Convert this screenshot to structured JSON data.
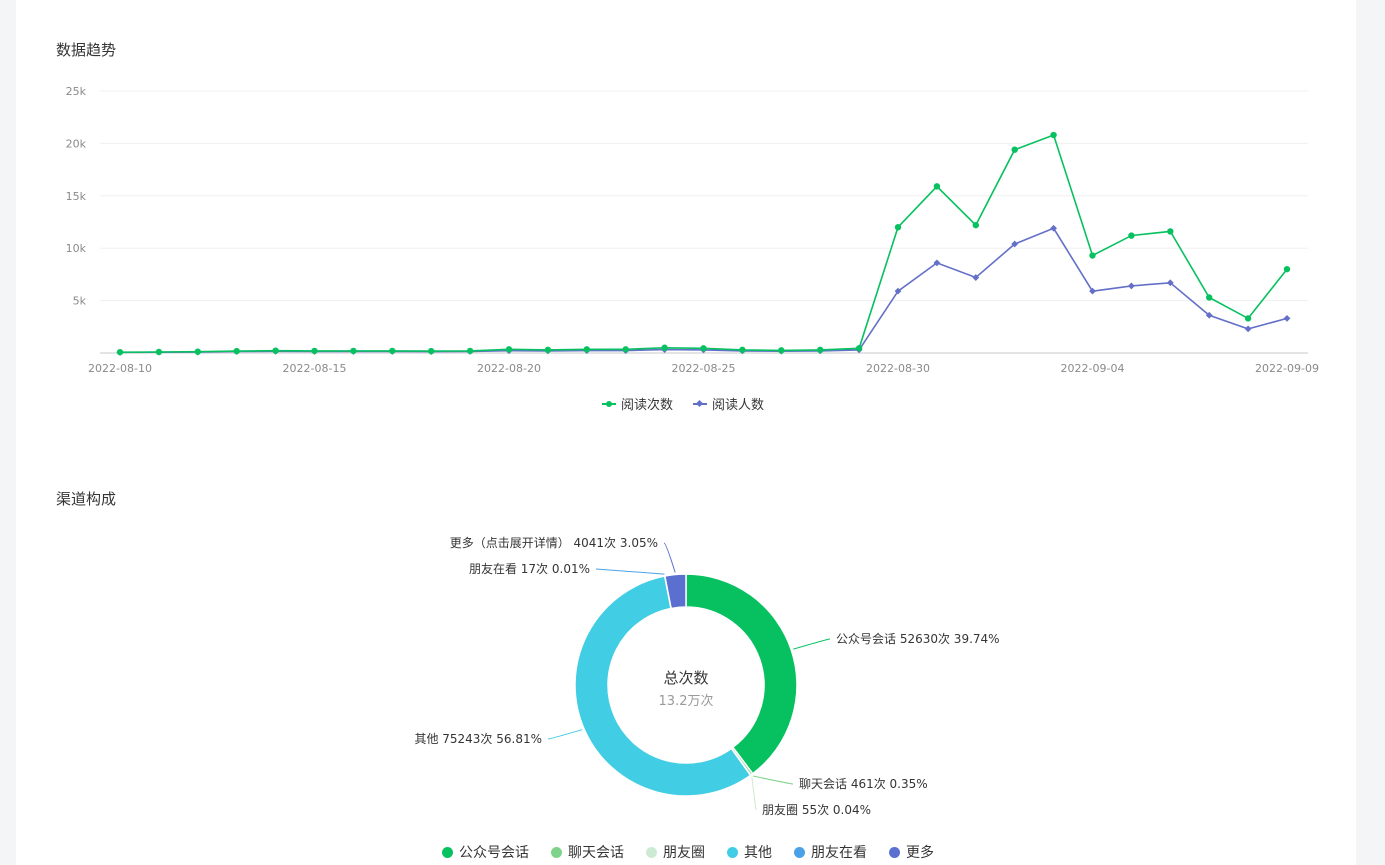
{
  "trend": {
    "title": "数据趋势"
  },
  "channel": {
    "title": "渠道构成",
    "center_label": "总次数",
    "center_value": "13.2万次"
  },
  "colors": {
    "read_count": "#07c160",
    "reader_count": "#6470c8",
    "gongzhonghao": "#07c160",
    "liaotian": "#7fd28a",
    "pengyouquan": "#cdebd2",
    "qita": "#41cde3",
    "pengyouzaikan": "#4aa1e8",
    "gengduo": "#5b6fd0"
  },
  "chart_data": [
    {
      "type": "line",
      "title": "",
      "xlabel": "",
      "ylabel": "",
      "ylim": [
        0,
        25000
      ],
      "yticks": [
        5000,
        10000,
        15000,
        20000,
        25000
      ],
      "ytick_labels": [
        "5k",
        "10k",
        "15k",
        "20k",
        "25k"
      ],
      "xtick_labels": [
        "2022-08-10",
        "2022-08-15",
        "2022-08-20",
        "2022-08-25",
        "2022-08-30",
        "2022-09-04",
        "2022-09-09"
      ],
      "grid": true,
      "legend_position": "bottom-center",
      "x": [
        "2022-08-10",
        "2022-08-11",
        "2022-08-12",
        "2022-08-13",
        "2022-08-14",
        "2022-08-15",
        "2022-08-16",
        "2022-08-17",
        "2022-08-18",
        "2022-08-19",
        "2022-08-20",
        "2022-08-21",
        "2022-08-22",
        "2022-08-23",
        "2022-08-24",
        "2022-08-25",
        "2022-08-26",
        "2022-08-27",
        "2022-08-28",
        "2022-08-29",
        "2022-08-30",
        "2022-08-31",
        "2022-09-01",
        "2022-09-02",
        "2022-09-03",
        "2022-09-04",
        "2022-09-05",
        "2022-09-06",
        "2022-09-07",
        "2022-09-08",
        "2022-09-09"
      ],
      "series": [
        {
          "name": "阅读次数",
          "marker": "circle",
          "values": [
            80,
            100,
            120,
            180,
            220,
            200,
            200,
            200,
            180,
            200,
            350,
            300,
            350,
            350,
            500,
            450,
            300,
            250,
            300,
            450,
            12000,
            15900,
            12200,
            19400,
            20800,
            9300,
            11200,
            11600,
            5300,
            3300,
            8000
          ]
        },
        {
          "name": "阅读人数",
          "marker": "diamond",
          "values": [
            60,
            80,
            90,
            140,
            160,
            150,
            150,
            150,
            130,
            140,
            220,
            200,
            230,
            230,
            320,
            300,
            200,
            170,
            200,
            300,
            5900,
            8600,
            7200,
            10400,
            11900,
            5900,
            6400,
            6700,
            3600,
            2300,
            3300
          ]
        }
      ]
    },
    {
      "type": "pie",
      "title": "",
      "legend_position": "bottom-center",
      "slices": [
        {
          "name": "公众号会话",
          "value": 52630,
          "percent": 39.74,
          "label": "公众号会话 52630次 39.74%"
        },
        {
          "name": "聊天会话",
          "value": 461,
          "percent": 0.35,
          "label": "聊天会话 461次 0.35%"
        },
        {
          "name": "朋友圈",
          "value": 55,
          "percent": 0.04,
          "label": "朋友圈 55次 0.04%"
        },
        {
          "name": "其他",
          "value": 75243,
          "percent": 56.81,
          "label": "其他 75243次 56.81%"
        },
        {
          "name": "朋友在看",
          "value": 17,
          "percent": 0.01,
          "label": "朋友在看 17次 0.01%"
        },
        {
          "name": "更多",
          "value": 4041,
          "percent": 3.05,
          "label": "更多（点击展开详情） 4041次 3.05%"
        }
      ]
    }
  ]
}
